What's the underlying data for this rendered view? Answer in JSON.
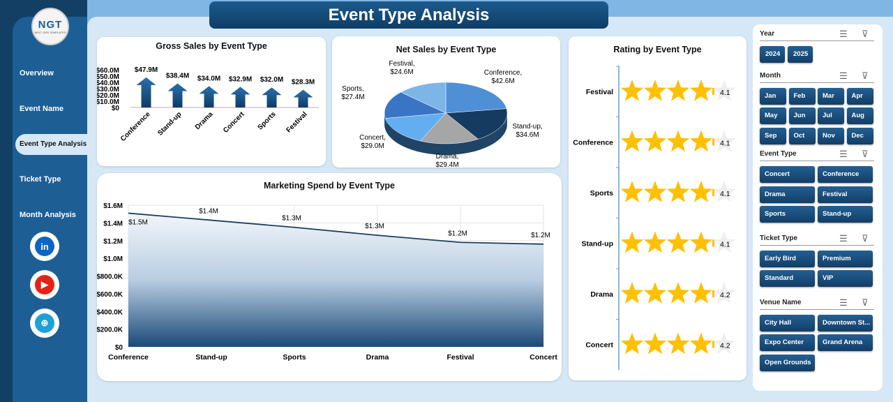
{
  "title": "Event Type Analysis",
  "logo": {
    "text": "NGT",
    "sub": "NEXT GEN TEMPLATES"
  },
  "nav": [
    "Overview",
    "Event Name",
    "Event Type Analysis",
    "Ticket Type",
    "Month Analysis"
  ],
  "social": [
    {
      "icon": "linkedin-icon",
      "label": "in",
      "color": "#0a66c2"
    },
    {
      "icon": "youtube-icon",
      "label": "▶",
      "color": "#e62117"
    },
    {
      "icon": "globe-icon",
      "label": "⊕",
      "color": "#1ea0d8"
    }
  ],
  "chart_data": [
    {
      "type": "bar",
      "title": "Gross Sales by Event Type",
      "categories": [
        "Conference",
        "Stand-up",
        "Drama",
        "Concert",
        "Sports",
        "Festival"
      ],
      "values": [
        47.9,
        38.4,
        34.0,
        32.9,
        32.0,
        28.3
      ],
      "labels": [
        "$47.9M",
        "$38.4M",
        "$34.0M",
        "$32.9M",
        "$32.0M",
        "$28.3M"
      ],
      "yticks": [
        "$0",
        "$10.0M",
        "$20.0M",
        "$30.0M",
        "$40.0M",
        "$50.0M",
        "$60.0M"
      ],
      "ylim": [
        0,
        60
      ]
    },
    {
      "type": "pie",
      "title": "Net Sales by Event Type",
      "categories": [
        "Conference",
        "Stand-up",
        "Drama",
        "Concert",
        "Sports",
        "Festival"
      ],
      "values": [
        42.6,
        34.6,
        29.4,
        29.0,
        27.4,
        24.6
      ],
      "labels": [
        "$42.6M",
        "$34.6M",
        "$29.4M",
        "$29.0M",
        "$27.4M",
        "$24.6M"
      ],
      "colors": [
        "#4f8fd6",
        "#153b61",
        "#a6a6a6",
        "#63aef0",
        "#3a74c4",
        "#7eb5e8"
      ]
    },
    {
      "type": "area",
      "title": "Marketing Spend by Event Type",
      "categories": [
        "Conference",
        "Stand-up",
        "Sports",
        "Drama",
        "Festival",
        "Concert"
      ],
      "values": [
        1.51,
        1.43,
        1.35,
        1.26,
        1.18,
        1.16
      ],
      "labels": [
        "$1.5M",
        "$1.4M",
        "$1.3M",
        "$1.3M",
        "$1.2M",
        "$1.2M"
      ],
      "yticks": [
        "$0",
        "$200.0K",
        "$400.0K",
        "$600.0K",
        "$800.0K",
        "$1.0M",
        "$1.2M",
        "$1.4M",
        "$1.6M"
      ],
      "ylim": [
        0,
        1.6
      ]
    },
    {
      "type": "rating",
      "title": "Rating by Event Type",
      "categories": [
        "Festival",
        "Conference",
        "Sports",
        "Stand-up",
        "Drama",
        "Concert"
      ],
      "values": [
        4.1,
        4.1,
        4.1,
        4.1,
        4.2,
        4.2
      ],
      "labels": [
        "4.1",
        "4.1",
        "4.1",
        "4.1",
        "4.2",
        "4.2"
      ],
      "max": 5
    }
  ],
  "slicers": [
    {
      "title": "Year",
      "items": [
        "2024",
        "2025"
      ],
      "cols": 4
    },
    {
      "title": "Month",
      "items": [
        "Jan",
        "Feb",
        "Mar",
        "Apr",
        "May",
        "Jun",
        "Jul",
        "Aug",
        "Sep",
        "Oct",
        "Nov",
        "Dec"
      ],
      "cols": 4
    },
    {
      "title": "Event Type",
      "items": [
        "Concert",
        "Conference",
        "Drama",
        "Festival",
        "Sports",
        "Stand-up"
      ],
      "cols": 2
    },
    {
      "title": "Ticket Type",
      "items": [
        "Early Bird",
        "Premium",
        "Standard",
        "VIP"
      ],
      "cols": 2
    },
    {
      "title": "Venue Name",
      "items": [
        "City Hall",
        "Downtown St...",
        "Expo Center",
        "Grand Arena",
        "Open Grounds"
      ],
      "cols": 2
    }
  ]
}
